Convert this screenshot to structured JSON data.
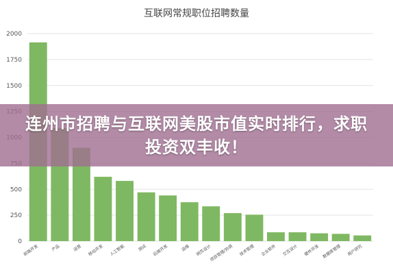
{
  "chart_data": {
    "type": "bar",
    "title": "互联网常规职位招聘数量",
    "categories": [
      "前端开发",
      "产品",
      "运营",
      "移动开发",
      "人工智能",
      "测试",
      "后端开发",
      "运维",
      "网页设计",
      "项目管理/协调",
      "技术管理",
      "企业软件",
      "交互设计",
      "硬件开发",
      "数据库管理",
      "用户研究"
    ],
    "values": [
      1915,
      1090,
      900,
      620,
      580,
      470,
      440,
      375,
      335,
      270,
      255,
      85,
      85,
      75,
      70,
      55
    ],
    "ylim": [
      0,
      2000
    ],
    "yticks": [
      0,
      250,
      500,
      750,
      1000,
      1250,
      1500,
      1750,
      2000
    ],
    "grid": true,
    "bar_color": "#7fb862"
  },
  "overlay": {
    "headline": "连州市招聘与互联网美股市值实时排行，求职投资双丰收！",
    "color": "#a06e91"
  }
}
